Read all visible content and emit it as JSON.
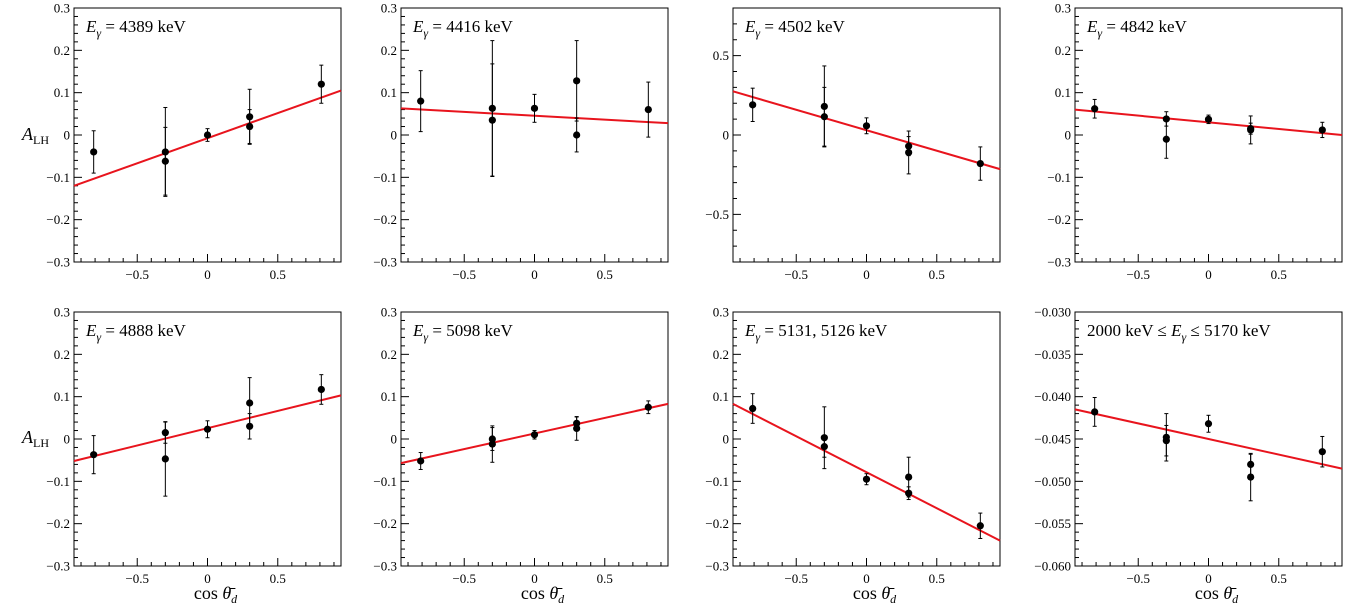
{
  "figure": {
    "ylabel_top": "A_LH",
    "ylabel_bottom": "A_LH",
    "xlabel": "cos θ̄_d",
    "fit_color": "#e8141d",
    "point_color": "#000000"
  },
  "chart_data": [
    {
      "type": "scatter",
      "title": "Eγ = 4389 keV",
      "xlabel": "cos θ̄_d",
      "ylabel": "A_LH",
      "xlim": [
        -0.95,
        0.95
      ],
      "ylim": [
        -0.3,
        0.3
      ],
      "xticks": [
        -0.5,
        0,
        0.5
      ],
      "xtick_labels": [
        "−0.5",
        "0",
        "0.5"
      ],
      "yticks": [
        -0.3,
        -0.2,
        -0.1,
        0,
        0.1,
        0.2,
        0.3
      ],
      "ytick_labels": [
        "−0.3",
        "−0.2",
        "−0.1",
        "0",
        "0.1",
        "0.2",
        "0.3"
      ],
      "points": [
        {
          "x": -0.81,
          "y": -0.04,
          "err": 0.05
        },
        {
          "x": -0.3,
          "y": -0.04,
          "err": 0.105
        },
        {
          "x": -0.3,
          "y": -0.062,
          "err": 0.08
        },
        {
          "x": 0.0,
          "y": 0.0,
          "err": 0.015
        },
        {
          "x": 0.3,
          "y": 0.043,
          "err": 0.065
        },
        {
          "x": 0.3,
          "y": 0.02,
          "err": 0.04
        },
        {
          "x": 0.81,
          "y": 0.12,
          "err": 0.045
        }
      ],
      "fit": {
        "x": [
          -0.95,
          0.95
        ],
        "y": [
          -0.12,
          0.105
        ]
      }
    },
    {
      "type": "scatter",
      "title": "Eγ = 4416 keV",
      "xlabel": "cos θ̄_d",
      "ylabel": "A_LH",
      "xlim": [
        -0.95,
        0.95
      ],
      "ylim": [
        -0.3,
        0.3
      ],
      "xticks": [
        -0.5,
        0,
        0.5
      ],
      "xtick_labels": [
        "−0.5",
        "0",
        "0.5"
      ],
      "yticks": [
        -0.3,
        -0.2,
        -0.1,
        0,
        0.1,
        0.2,
        0.3
      ],
      "ytick_labels": [
        "−0.3",
        "−0.2",
        "−0.1",
        "0",
        "0.1",
        "0.2",
        "0.3"
      ],
      "points": [
        {
          "x": -0.81,
          "y": 0.08,
          "err": 0.072
        },
        {
          "x": -0.3,
          "y": 0.063,
          "err": 0.16
        },
        {
          "x": -0.3,
          "y": 0.035,
          "err": 0.133
        },
        {
          "x": 0.0,
          "y": 0.063,
          "err": 0.033
        },
        {
          "x": 0.3,
          "y": 0.128,
          "err": 0.095
        },
        {
          "x": 0.3,
          "y": 0.0,
          "err": 0.04
        },
        {
          "x": 0.81,
          "y": 0.06,
          "err": 0.065
        }
      ],
      "fit": {
        "x": [
          -0.95,
          0.95
        ],
        "y": [
          0.063,
          0.028
        ]
      }
    },
    {
      "type": "scatter",
      "title": "Eγ = 4502 keV",
      "xlabel": "cos θ̄_d",
      "ylabel": "A_LH",
      "xlim": [
        -0.95,
        0.95
      ],
      "ylim": [
        -0.8,
        0.8
      ],
      "xticks": [
        -0.5,
        0,
        0.5
      ],
      "xtick_labels": [
        "−0.5",
        "0",
        "0.5"
      ],
      "yticks": [
        -0.5,
        0,
        0.5
      ],
      "ytick_labels": [
        "−0.5",
        "0",
        "0.5"
      ],
      "points": [
        {
          "x": -0.81,
          "y": 0.19,
          "err": 0.105
        },
        {
          "x": -0.3,
          "y": 0.18,
          "err": 0.255
        },
        {
          "x": -0.3,
          "y": 0.115,
          "err": 0.185
        },
        {
          "x": 0.0,
          "y": 0.058,
          "err": 0.05
        },
        {
          "x": 0.3,
          "y": -0.11,
          "err": 0.135
        },
        {
          "x": 0.3,
          "y": -0.07,
          "err": 0.06
        },
        {
          "x": 0.81,
          "y": -0.18,
          "err": 0.105
        }
      ],
      "fit": {
        "x": [
          -0.95,
          0.95
        ],
        "y": [
          0.275,
          -0.215
        ]
      }
    },
    {
      "type": "scatter",
      "title": "Eγ = 4842 keV",
      "xlabel": "cos θ̄_d",
      "ylabel": "A_LH",
      "xlim": [
        -0.95,
        0.95
      ],
      "ylim": [
        -0.3,
        0.3
      ],
      "xticks": [
        -0.5,
        0,
        0.5
      ],
      "xtick_labels": [
        "−0.5",
        "0",
        "0.5"
      ],
      "yticks": [
        -0.3,
        -0.2,
        -0.1,
        0,
        0.1,
        0.2,
        0.3
      ],
      "ytick_labels": [
        "−0.3",
        "−0.2",
        "−0.1",
        "0",
        "0.1",
        "0.2",
        "0.3"
      ],
      "points": [
        {
          "x": -0.81,
          "y": 0.062,
          "err": 0.022
        },
        {
          "x": -0.3,
          "y": 0.038,
          "err": 0.017
        },
        {
          "x": -0.3,
          "y": -0.01,
          "err": 0.045
        },
        {
          "x": 0.0,
          "y": 0.037,
          "err": 0.01
        },
        {
          "x": 0.3,
          "y": 0.012,
          "err": 0.033
        },
        {
          "x": 0.3,
          "y": 0.015,
          "err": 0.013
        },
        {
          "x": 0.81,
          "y": 0.012,
          "err": 0.018
        }
      ],
      "fit": {
        "x": [
          -0.95,
          0.95
        ],
        "y": [
          0.06,
          0.0
        ]
      }
    },
    {
      "type": "scatter",
      "title": "Eγ = 4888 keV",
      "xlabel": "cos θ̄_d",
      "ylabel": "A_LH",
      "xlim": [
        -0.95,
        0.95
      ],
      "ylim": [
        -0.3,
        0.3
      ],
      "xticks": [
        -0.5,
        0,
        0.5
      ],
      "xtick_labels": [
        "−0.5",
        "0",
        "0.5"
      ],
      "yticks": [
        -0.3,
        -0.2,
        -0.1,
        0,
        0.1,
        0.2,
        0.3
      ],
      "ytick_labels": [
        "−0.3",
        "−0.2",
        "−0.1",
        "0",
        "0.1",
        "0.2",
        "0.3"
      ],
      "points": [
        {
          "x": -0.81,
          "y": -0.037,
          "err": 0.045
        },
        {
          "x": -0.3,
          "y": 0.015,
          "err": 0.025
        },
        {
          "x": -0.3,
          "y": -0.047,
          "err": 0.088
        },
        {
          "x": 0.0,
          "y": 0.023,
          "err": 0.02
        },
        {
          "x": 0.3,
          "y": 0.085,
          "err": 0.06
        },
        {
          "x": 0.3,
          "y": 0.03,
          "err": 0.03
        },
        {
          "x": 0.81,
          "y": 0.117,
          "err": 0.035
        }
      ],
      "fit": {
        "x": [
          -0.95,
          0.95
        ],
        "y": [
          -0.052,
          0.103
        ]
      }
    },
    {
      "type": "scatter",
      "title": "Eγ = 5098 keV",
      "xlabel": "cos θ̄_d",
      "ylabel": "A_LH",
      "xlim": [
        -0.95,
        0.95
      ],
      "ylim": [
        -0.3,
        0.3
      ],
      "xticks": [
        -0.5,
        0,
        0.5
      ],
      "xtick_labels": [
        "−0.5",
        "0",
        "0.5"
      ],
      "yticks": [
        -0.3,
        -0.2,
        -0.1,
        0,
        0.1,
        0.2,
        0.3
      ],
      "ytick_labels": [
        "−0.3",
        "−0.2",
        "−0.1",
        "0",
        "0.1",
        "0.2",
        "0.3"
      ],
      "points": [
        {
          "x": -0.81,
          "y": -0.052,
          "err": 0.02
        },
        {
          "x": -0.3,
          "y": 0.0,
          "err": 0.027
        },
        {
          "x": -0.3,
          "y": -0.012,
          "err": 0.043
        },
        {
          "x": 0.0,
          "y": 0.01,
          "err": 0.01
        },
        {
          "x": 0.3,
          "y": 0.025,
          "err": 0.028
        },
        {
          "x": 0.3,
          "y": 0.037,
          "err": 0.015
        },
        {
          "x": 0.81,
          "y": 0.075,
          "err": 0.015
        }
      ],
      "fit": {
        "x": [
          -0.95,
          0.95
        ],
        "y": [
          -0.057,
          0.083
        ]
      }
    },
    {
      "type": "scatter",
      "title": "Eγ = 5131, 5126 keV",
      "xlabel": "cos θ̄_d",
      "ylabel": "A_LH",
      "xlim": [
        -0.95,
        0.95
      ],
      "ylim": [
        -0.3,
        0.3
      ],
      "xticks": [
        -0.5,
        0,
        0.5
      ],
      "xtick_labels": [
        "−0.5",
        "0",
        "0.5"
      ],
      "yticks": [
        -0.3,
        -0.2,
        -0.1,
        0,
        0.1,
        0.2,
        0.3
      ],
      "ytick_labels": [
        "−0.3",
        "−0.2",
        "−0.1",
        "0",
        "0.1",
        "0.2",
        "0.3"
      ],
      "points": [
        {
          "x": -0.81,
          "y": 0.072,
          "err": 0.035
        },
        {
          "x": -0.3,
          "y": 0.003,
          "err": 0.073
        },
        {
          "x": -0.3,
          "y": -0.018,
          "err": 0.025
        },
        {
          "x": 0.0,
          "y": -0.095,
          "err": 0.013
        },
        {
          "x": 0.3,
          "y": -0.09,
          "err": 0.047
        },
        {
          "x": 0.3,
          "y": -0.128,
          "err": 0.015
        },
        {
          "x": 0.81,
          "y": -0.205,
          "err": 0.03
        }
      ],
      "fit": {
        "x": [
          -0.95,
          0.95
        ],
        "y": [
          0.083,
          -0.24
        ]
      }
    },
    {
      "type": "scatter",
      "title": "2000 keV ≤ Eγ ≤ 5170 keV",
      "xlabel": "cos θ̄_d",
      "ylabel": "A_LH",
      "xlim": [
        -0.95,
        0.95
      ],
      "ylim": [
        -0.06,
        -0.03
      ],
      "xticks": [
        -0.5,
        0,
        0.5
      ],
      "xtick_labels": [
        "−0.5",
        "0",
        "0.5"
      ],
      "yticks": [
        -0.06,
        -0.055,
        -0.05,
        -0.045,
        -0.04,
        -0.035,
        -0.03
      ],
      "ytick_labels": [
        "−0.060",
        "−0.055",
        "−0.050",
        "−0.045",
        "−0.040",
        "−0.035",
        "−0.030"
      ],
      "points": [
        {
          "x": -0.81,
          "y": -0.0418,
          "err": 0.0017
        },
        {
          "x": -0.3,
          "y": -0.0448,
          "err": 0.0028
        },
        {
          "x": -0.3,
          "y": -0.0452,
          "err": 0.0018
        },
        {
          "x": 0.0,
          "y": -0.0432,
          "err": 0.001
        },
        {
          "x": 0.3,
          "y": -0.0495,
          "err": 0.0028
        },
        {
          "x": 0.3,
          "y": -0.048,
          "err": 0.0012
        },
        {
          "x": 0.81,
          "y": -0.0465,
          "err": 0.0018
        }
      ],
      "fit": {
        "x": [
          -0.95,
          0.95
        ],
        "y": [
          -0.0415,
          -0.0485
        ]
      }
    }
  ]
}
